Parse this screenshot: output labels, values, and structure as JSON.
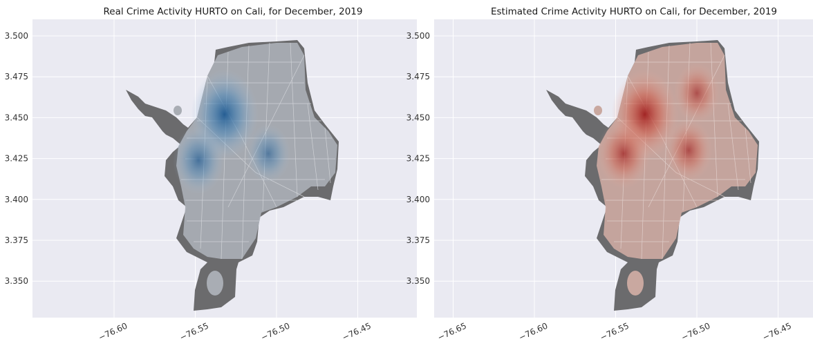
{
  "colors": {
    "axes_bg": "#eaeaf2",
    "grid": "#ffffff",
    "land": "#6b6b6d",
    "streets": "#c8c8cc",
    "real_kde": "#2f6fa8",
    "estimated_kde": "#c0392b"
  },
  "chart_data": [
    {
      "type": "heatmap",
      "title": "Real Crime Activity HURTO on Cali, for December, 2019",
      "xlim": [
        -76.645,
        -76.42
      ],
      "ylim": [
        3.33,
        3.508
      ],
      "xticks": [
        "−76.60",
        "−76.55",
        "−76.50",
        "−76.45"
      ],
      "xtick_values": [
        -76.6,
        -76.55,
        -76.5,
        -76.45
      ],
      "yticks": [
        "3.350",
        "3.375",
        "3.400",
        "3.425",
        "3.450",
        "3.475",
        "3.500"
      ],
      "ytick_values": [
        3.35,
        3.375,
        3.4,
        3.425,
        3.45,
        3.475,
        3.5
      ],
      "grid": true,
      "colormap": "Blues",
      "hotspots": [
        {
          "x": -76.532,
          "y": 3.452,
          "intensity": 1.0
        },
        {
          "x": -76.548,
          "y": 3.424,
          "intensity": 0.55
        },
        {
          "x": -76.505,
          "y": 3.428,
          "intensity": 0.35
        }
      ]
    },
    {
      "type": "heatmap",
      "title": "Estimated Crime Activity HURTO on Cali, for December, 2019",
      "xlim": [
        -76.645,
        -76.42
      ],
      "ylim": [
        3.33,
        3.508
      ],
      "xticks": [
        "−76.65",
        "−76.60",
        "−76.55",
        "−76.50",
        "−76.45"
      ],
      "xtick_values": [
        -76.65,
        -76.6,
        -76.55,
        -76.5,
        -76.45
      ],
      "yticks": [
        "3.350",
        "3.375",
        "3.400",
        "3.425",
        "3.450",
        "3.475",
        "3.500"
      ],
      "ytick_values": [
        3.35,
        3.375,
        3.4,
        3.425,
        3.45,
        3.475,
        3.5
      ],
      "grid": true,
      "colormap": "Reds",
      "hotspots": [
        {
          "x": -76.532,
          "y": 3.452,
          "intensity": 1.0
        },
        {
          "x": -76.545,
          "y": 3.428,
          "intensity": 0.6
        },
        {
          "x": -76.505,
          "y": 3.43,
          "intensity": 0.45
        },
        {
          "x": -76.5,
          "y": 3.465,
          "intensity": 0.4
        }
      ]
    }
  ]
}
